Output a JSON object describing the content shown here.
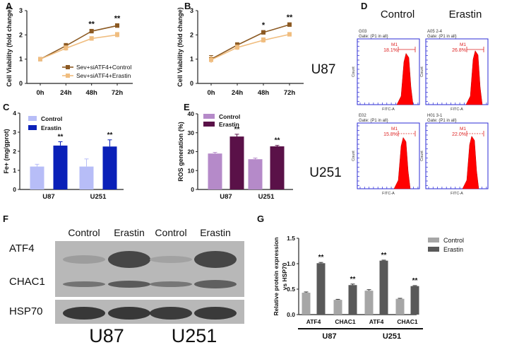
{
  "panels": {
    "A": {
      "letter": "A",
      "chart_data": {
        "type": "line",
        "x": [
          "0h",
          "24h",
          "48h",
          "72h"
        ],
        "ylabel": "Cell Viability (fold change)",
        "ylim": [
          0,
          3
        ],
        "yticks": [
          "0",
          "1",
          "2",
          "3"
        ],
        "series": [
          {
            "name": "Sev+siATF4+Control",
            "values": [
              1.0,
              1.55,
              2.15,
              2.38
            ],
            "err": [
              0.06,
              0.1,
              0.08,
              0.08
            ],
            "color": "#8c5a23"
          },
          {
            "name": "Sev+siATF4+Erastin",
            "values": [
              1.0,
              1.45,
              1.85,
              2.0
            ],
            "err": [
              0.06,
              0.1,
              0.08,
              0.1
            ],
            "color": "#f0bd7f"
          }
        ],
        "annotations": [
          {
            "x": "48h",
            "text": "**"
          },
          {
            "x": "72h",
            "text": "**"
          }
        ],
        "legend": "bottom-right"
      }
    },
    "B": {
      "letter": "B",
      "chart_data": {
        "type": "line",
        "x": [
          "0h",
          "24h",
          "48h",
          "72h"
        ],
        "ylabel": "Cell Viability (fold change)",
        "ylim": [
          0,
          3
        ],
        "yticks": [
          "0",
          "1",
          "2",
          "3"
        ],
        "series": [
          {
            "values": [
              1.0,
              1.58,
              2.1,
              2.42
            ],
            "err": [
              0.15,
              0.1,
              0.08,
              0.08
            ],
            "color": "#8c5a23"
          },
          {
            "values": [
              0.97,
              1.48,
              1.78,
              2.02
            ],
            "err": [
              0.12,
              0.1,
              0.1,
              0.08
            ],
            "color": "#f0bd7f"
          }
        ],
        "annotations": [
          {
            "x": "48h",
            "text": "*"
          },
          {
            "x": "72h",
            "text": "**"
          }
        ]
      }
    },
    "C": {
      "letter": "C",
      "chart_data": {
        "type": "bar",
        "categories": [
          "U87",
          "U251"
        ],
        "ylabel": "Fe+ (mg/gprot)",
        "ylim": [
          0,
          4
        ],
        "yticks": [
          "0",
          "1",
          "2",
          "3",
          "4"
        ],
        "series": [
          {
            "name": "Control",
            "values": [
              1.2,
              1.2
            ],
            "err": [
              0.12,
              0.4
            ],
            "color": "#b7bdf7"
          },
          {
            "name": "Erastin",
            "values": [
              2.3,
              2.25
            ],
            "err": [
              0.2,
              0.35
            ],
            "color": "#0a20b8"
          }
        ],
        "annotations": [
          {
            "series": 1,
            "index": 0,
            "text": "**"
          },
          {
            "series": 1,
            "index": 1,
            "text": "**"
          }
        ],
        "legend": "top-left"
      }
    },
    "E": {
      "letter": "E",
      "chart_data": {
        "type": "bar",
        "categories": [
          "U87",
          "U251"
        ],
        "ylabel": "ROS generation (%)",
        "ylim": [
          0,
          40
        ],
        "yticks": [
          "0",
          "10",
          "20",
          "30",
          "40"
        ],
        "series": [
          {
            "name": "Control",
            "values": [
              19,
              16
            ],
            "err": [
              0.6,
              0.6
            ],
            "color": "#b58ac9"
          },
          {
            "name": "Erastin",
            "values": [
              28,
              22.8
            ],
            "err": [
              1.2,
              0.5
            ],
            "color": "#5a1148"
          }
        ],
        "annotations": [
          {
            "series": 1,
            "index": 0,
            "text": "**"
          },
          {
            "series": 1,
            "index": 1,
            "text": "**"
          }
        ],
        "legend": "top-left"
      }
    },
    "G": {
      "letter": "G",
      "chart_data": {
        "type": "bar",
        "categories": [
          "ATF4",
          "CHAC1",
          "ATF4",
          "CHAC1"
        ],
        "groups": [
          "U87",
          "U251"
        ],
        "ylabel": "Relative protein expression vs HSP70",
        "ylim": [
          0,
          1.5
        ],
        "yticks": [
          "0.0",
          "0.5",
          "1.0",
          "1.5"
        ],
        "series": [
          {
            "name": "Control",
            "values": [
              0.43,
              0.29,
              0.47,
              0.31
            ],
            "err": [
              0.015,
              0.01,
              0.02,
              0.01
            ],
            "color": "#a6a6a6"
          },
          {
            "name": "Erastin",
            "values": [
              1.01,
              0.58,
              1.06,
              0.56
            ],
            "err": [
              0.015,
              0.02,
              0.01,
              0.01
            ],
            "color": "#595959"
          }
        ],
        "annotations": [
          {
            "series": 1,
            "index": 0,
            "text": "**"
          },
          {
            "series": 1,
            "index": 1,
            "text": "**"
          },
          {
            "series": 1,
            "index": 2,
            "text": "**"
          },
          {
            "series": 1,
            "index": 3,
            "text": "**"
          }
        ],
        "legend": "top-right"
      }
    }
  },
  "flow": {
    "letter": "D",
    "columns": [
      "Control",
      "Erastin"
    ],
    "rows": [
      "U87",
      "U251"
    ],
    "plots": [
      {
        "sample": "G03",
        "gate": "Gate: (P1 in all)",
        "marker": "M1",
        "pct": "18.1%",
        "xlabel": "FITC-A",
        "ylabel": "Count"
      },
      {
        "sample": "A05 2-4",
        "gate": "Gate: (P1 in all)",
        "marker": "M1",
        "pct": "26.8%",
        "xlabel": "FITC-A",
        "ylabel": "Count"
      },
      {
        "sample": "E02",
        "gate": "Gate: (P1 in all)",
        "marker": "M1",
        "pct": "15.8%",
        "xlabel": "FITC-A",
        "ylabel": "Count"
      },
      {
        "sample": "H01 3-1",
        "gate": "Gate: (P1 in all)",
        "marker": "M1",
        "pct": "22.0%",
        "xlabel": "FITC-A",
        "ylabel": "Count"
      }
    ]
  },
  "western": {
    "letter": "F",
    "lanes": [
      "Control",
      "Erastin",
      "Control",
      "Erastin"
    ],
    "proteins": [
      "ATF4",
      "CHAC1",
      "HSP70"
    ],
    "cell_lines": [
      "U87",
      "U251"
    ]
  }
}
